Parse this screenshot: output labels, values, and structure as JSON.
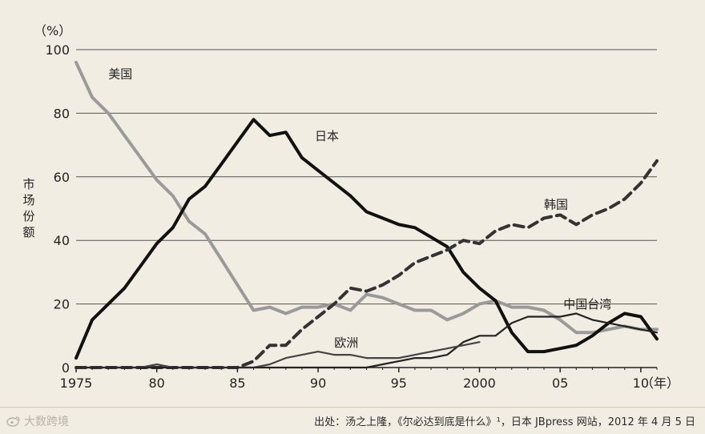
{
  "chart_data": {
    "type": "line",
    "title": "",
    "unit_label": "（%）",
    "ylabel": "市场份额",
    "x_unit_label": "（年）",
    "ylim": [
      0,
      100
    ],
    "xlim": [
      1975,
      2011
    ],
    "y_ticks": [
      0,
      20,
      40,
      60,
      80,
      100
    ],
    "x_ticks": [
      1975,
      1980,
      1985,
      1990,
      1995,
      2000,
      2005,
      2010
    ],
    "x_tick_labels": [
      "1975",
      "80",
      "85",
      "90",
      "95",
      "2000",
      "05",
      "10"
    ],
    "grid": "horizontal",
    "series": [
      {
        "name": "美国",
        "color": "#9a9a9a",
        "style": "solid",
        "x": [
          1975,
          1976,
          1977,
          1978,
          1979,
          1980,
          1981,
          1982,
          1983,
          1984,
          1985,
          1986,
          1987,
          1988,
          1989,
          1990,
          1991,
          1992,
          1993,
          1994,
          1995,
          1996,
          1997,
          1998,
          1999,
          2000,
          2001,
          2002,
          2003,
          2004,
          2005,
          2006,
          2007,
          2008,
          2009,
          2010,
          2011
        ],
        "y": [
          96,
          85,
          80,
          73,
          66,
          59,
          54,
          46,
          42,
          34,
          26,
          18,
          19,
          17,
          19,
          19,
          20,
          18,
          23,
          22,
          20,
          18,
          18,
          15,
          17,
          20,
          21,
          19,
          19,
          18,
          15,
          11,
          11,
          12,
          13,
          12,
          12
        ]
      },
      {
        "name": "日本",
        "color": "#111111",
        "style": "solid",
        "x": [
          1975,
          1976,
          1977,
          1978,
          1979,
          1980,
          1981,
          1982,
          1983,
          1984,
          1985,
          1986,
          1987,
          1988,
          1989,
          1990,
          1991,
          1992,
          1993,
          1994,
          1995,
          1996,
          1997,
          1998,
          1999,
          2000,
          2001,
          2002,
          2003,
          2004,
          2005,
          2006,
          2007,
          2008,
          2009,
          2010,
          2011
        ],
        "y": [
          3,
          15,
          20,
          25,
          32,
          39,
          44,
          53,
          57,
          64,
          71,
          78,
          73,
          74,
          66,
          62,
          58,
          54,
          49,
          47,
          45,
          44,
          41,
          38,
          30,
          25,
          21,
          11,
          5,
          5,
          6,
          7,
          10,
          14,
          17,
          16,
          9
        ]
      },
      {
        "name": "韩国",
        "color": "#333333",
        "style": "dashed",
        "x": [
          1975,
          1985,
          1986,
          1987,
          1988,
          1989,
          1990,
          1991,
          1992,
          1993,
          1994,
          1995,
          1996,
          1997,
          1998,
          1999,
          2000,
          2001,
          2002,
          2003,
          2004,
          2005,
          2006,
          2007,
          2008,
          2009,
          2010,
          2011
        ],
        "y": [
          0,
          0,
          2,
          7,
          7,
          12,
          16,
          20,
          25,
          24,
          26,
          29,
          33,
          35,
          37,
          40,
          39,
          43,
          45,
          44,
          47,
          48,
          45,
          48,
          50,
          53,
          58,
          65
        ]
      },
      {
        "name": "中国台湾",
        "color": "#222222",
        "style": "solid",
        "x": [
          1975,
          1993,
          1994,
          1995,
          1996,
          1997,
          1998,
          1999,
          2000,
          2001,
          2002,
          2003,
          2004,
          2005,
          2006,
          2007,
          2008,
          2009,
          2010,
          2011
        ],
        "y": [
          0,
          0,
          1,
          2,
          3,
          3,
          4,
          8,
          10,
          10,
          14,
          16,
          16,
          16,
          17,
          15,
          14,
          13,
          12,
          11
        ]
      },
      {
        "name": "欧洲",
        "color": "#444444",
        "style": "solid",
        "x": [
          1975,
          1979,
          1980,
          1981,
          1982,
          1986,
          1987,
          1988,
          1989,
          1990,
          1991,
          1992,
          1993,
          1994,
          1995,
          1996,
          1997,
          1998,
          1999,
          2000
        ],
        "y": [
          0,
          0,
          1,
          0,
          0,
          0,
          1,
          3,
          4,
          5,
          4,
          4,
          3,
          3,
          3,
          4,
          5,
          6,
          7,
          8
        ]
      }
    ],
    "source": "出处：汤之上隆，《尔必达到底是什么》¹，日本 JBpress 网站，2012 年 4 月 5 日"
  },
  "watermark": "大数跨境"
}
